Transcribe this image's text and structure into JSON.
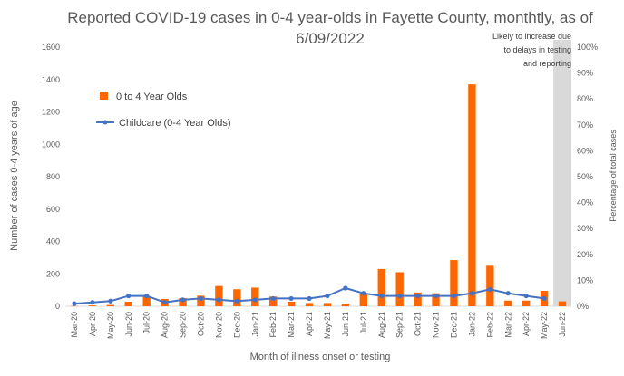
{
  "chart_data": {
    "type": "bar",
    "title_line1": "Reported COVID-19 cases in 0-4 year-olds in Fayette County, monthtly, as of",
    "title_line2": "6/09/2022",
    "ylabel": "Number of cases 0-4 years of age",
    "y2label": "Percentage of total cases",
    "xlabel": "Month of illness onset or testing",
    "ylim": [
      0,
      1600
    ],
    "y_ticks": [
      "0",
      "200",
      "400",
      "600",
      "800",
      "1000",
      "1200",
      "1400",
      "1600"
    ],
    "y2lim": [
      0,
      100
    ],
    "y2_ticks": [
      "0%",
      "10%",
      "20%",
      "30%",
      "40%",
      "50%",
      "60%",
      "70%",
      "80%",
      "90%",
      "100%"
    ],
    "categories": [
      "Mar-20",
      "Apr-20",
      "May-20",
      "Jun-20",
      "Jul-20",
      "Aug-20",
      "Sep-20",
      "Oct-20",
      "Nov-20",
      "Dec-20",
      "Jan-21",
      "Feb-21",
      "Mar-21",
      "Apr-21",
      "May-21",
      "Jun-21",
      "Jul-21",
      "Aug-21",
      "Sep-21",
      "Oct-21",
      "Nov-21",
      "Dec-21",
      "Jan-22",
      "Feb-22",
      "Mar-22",
      "Apr-22",
      "May-22",
      "Jun-22"
    ],
    "series": [
      {
        "name": "0 to 4 Year Olds",
        "type": "bar",
        "axis": "left",
        "color": "#FF6600",
        "values": [
          2,
          5,
          8,
          28,
          60,
          45,
          50,
          65,
          125,
          105,
          115,
          60,
          28,
          20,
          20,
          15,
          75,
          230,
          210,
          85,
          80,
          285,
          1370,
          250,
          35,
          35,
          95,
          30
        ]
      },
      {
        "name": "Childcare (0-4 Year Olds)",
        "type": "line",
        "axis": "right",
        "color": "#4472C4",
        "values": [
          1,
          1.5,
          2,
          4,
          4,
          1.5,
          2.5,
          3,
          2.5,
          2,
          2.5,
          3,
          3,
          3,
          4,
          7,
          5,
          4,
          4,
          4,
          4,
          4,
          5,
          6.5,
          5,
          4,
          3,
          null
        ]
      }
    ],
    "shaded_category": "Jun-22",
    "shade_color": "#D9D9D9",
    "annotation": [
      "Likely to increase due",
      "to delays in testing",
      "and reporting"
    ],
    "legend_position": "upper-left"
  }
}
